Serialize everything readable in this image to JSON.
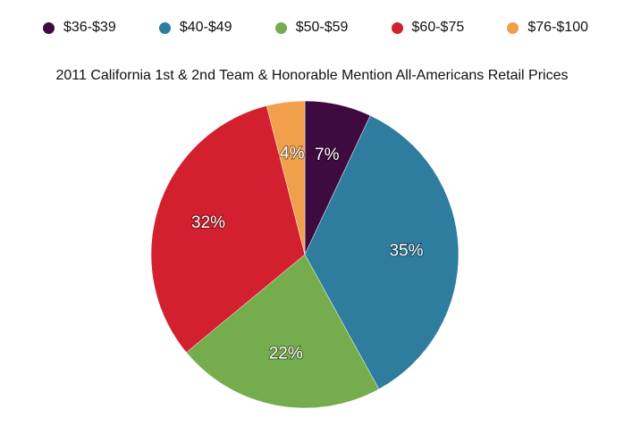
{
  "chart_data": {
    "type": "pie",
    "title": "2011 California 1st & 2nd Team & Honorable Mention All-Americans Retail Prices",
    "legend_position": "top",
    "slices": [
      {
        "name": "$36-$39",
        "value": 7,
        "label": "7%",
        "color": "#3d0b40"
      },
      {
        "name": "$40-$49",
        "value": 35,
        "label": "35%",
        "color": "#2e7d9e"
      },
      {
        "name": "$50-$59",
        "value": 22,
        "label": "22%",
        "color": "#75ad4e"
      },
      {
        "name": "$60-$75",
        "value": 32,
        "label": "32%",
        "color": "#d2202e"
      },
      {
        "name": "$76-$100",
        "value": 4,
        "label": "4%",
        "color": "#f0a04b"
      }
    ]
  }
}
